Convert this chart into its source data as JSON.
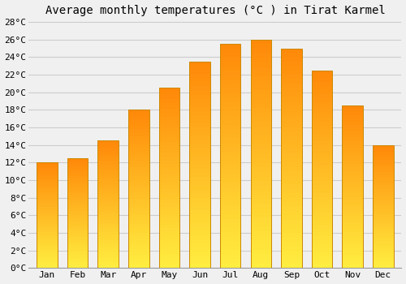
{
  "title": "Average monthly temperatures (°C ) in Tirat Karmel",
  "months": [
    "Jan",
    "Feb",
    "Mar",
    "Apr",
    "May",
    "Jun",
    "Jul",
    "Aug",
    "Sep",
    "Oct",
    "Nov",
    "Dec"
  ],
  "temperatures": [
    12.0,
    12.5,
    14.5,
    18.0,
    20.5,
    23.5,
    25.5,
    26.0,
    25.0,
    22.5,
    18.5,
    14.0
  ],
  "bar_color": "#FFA500",
  "bar_color_light": "#FFD060",
  "bar_color_dark": "#FF9500",
  "bar_edge_color": "#CC8800",
  "ylim": [
    0,
    28
  ],
  "ytick_step": 2,
  "background_color": "#F0F0F0",
  "grid_color": "#CCCCCC",
  "title_fontsize": 10,
  "tick_fontsize": 8,
  "font_family": "monospace"
}
